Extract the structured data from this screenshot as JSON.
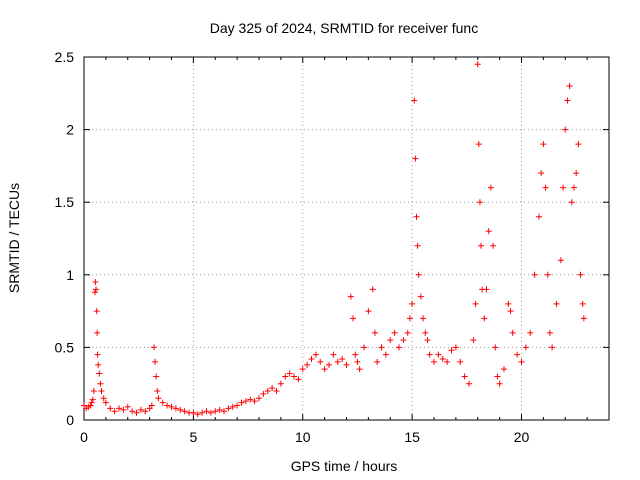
{
  "chart_data": {
    "type": "scatter",
    "title": "Day 325 of 2024, SRMTID for receiver func",
    "xlabel": "GPS time / hours",
    "ylabel": "SRMTID / TECUs",
    "xlim": [
      0,
      24
    ],
    "ylim": [
      0,
      2.5
    ],
    "x_ticks": [
      0,
      5,
      10,
      15,
      20
    ],
    "x_tick_labels": [
      "0",
      "5",
      "10",
      "15",
      "20"
    ],
    "y_ticks": [
      0,
      0.5,
      1,
      1.5,
      2,
      2.5
    ],
    "y_tick_labels": [
      "0",
      "0.5",
      "1",
      "1.5",
      "2",
      "2.5"
    ],
    "grid": true,
    "marker": "+",
    "color": "#ff0000",
    "series": [
      {
        "name": "SRMTID",
        "points": [
          [
            0.0,
            0.1
          ],
          [
            0.1,
            0.08
          ],
          [
            0.2,
            0.09
          ],
          [
            0.3,
            0.1
          ],
          [
            0.35,
            0.12
          ],
          [
            0.4,
            0.14
          ],
          [
            0.45,
            0.2
          ],
          [
            0.5,
            0.88
          ],
          [
            0.52,
            0.95
          ],
          [
            0.55,
            0.9
          ],
          [
            0.58,
            0.75
          ],
          [
            0.6,
            0.6
          ],
          [
            0.62,
            0.45
          ],
          [
            0.65,
            0.38
          ],
          [
            0.7,
            0.32
          ],
          [
            0.75,
            0.25
          ],
          [
            0.8,
            0.2
          ],
          [
            0.9,
            0.15
          ],
          [
            1.0,
            0.12
          ],
          [
            1.2,
            0.08
          ],
          [
            1.4,
            0.06
          ],
          [
            1.6,
            0.08
          ],
          [
            1.8,
            0.07
          ],
          [
            2.0,
            0.09
          ],
          [
            2.2,
            0.06
          ],
          [
            2.4,
            0.05
          ],
          [
            2.6,
            0.07
          ],
          [
            2.8,
            0.06
          ],
          [
            3.0,
            0.08
          ],
          [
            3.1,
            0.1
          ],
          [
            3.2,
            0.5
          ],
          [
            3.25,
            0.4
          ],
          [
            3.3,
            0.3
          ],
          [
            3.35,
            0.2
          ],
          [
            3.4,
            0.15
          ],
          [
            3.6,
            0.12
          ],
          [
            3.8,
            0.1
          ],
          [
            4.0,
            0.09
          ],
          [
            4.2,
            0.08
          ],
          [
            4.4,
            0.07
          ],
          [
            4.6,
            0.06
          ],
          [
            4.8,
            0.05
          ],
          [
            5.0,
            0.05
          ],
          [
            5.2,
            0.04
          ],
          [
            5.4,
            0.05
          ],
          [
            5.6,
            0.06
          ],
          [
            5.8,
            0.05
          ],
          [
            6.0,
            0.06
          ],
          [
            6.2,
            0.07
          ],
          [
            6.4,
            0.06
          ],
          [
            6.6,
            0.08
          ],
          [
            6.8,
            0.09
          ],
          [
            7.0,
            0.1
          ],
          [
            7.2,
            0.12
          ],
          [
            7.4,
            0.13
          ],
          [
            7.6,
            0.14
          ],
          [
            7.8,
            0.13
          ],
          [
            8.0,
            0.15
          ],
          [
            8.2,
            0.18
          ],
          [
            8.4,
            0.2
          ],
          [
            8.6,
            0.22
          ],
          [
            8.8,
            0.2
          ],
          [
            9.0,
            0.25
          ],
          [
            9.2,
            0.3
          ],
          [
            9.4,
            0.32
          ],
          [
            9.6,
            0.3
          ],
          [
            9.8,
            0.28
          ],
          [
            10.0,
            0.35
          ],
          [
            10.2,
            0.38
          ],
          [
            10.4,
            0.42
          ],
          [
            10.6,
            0.45
          ],
          [
            10.8,
            0.4
          ],
          [
            11.0,
            0.35
          ],
          [
            11.2,
            0.38
          ],
          [
            11.4,
            0.45
          ],
          [
            11.6,
            0.4
          ],
          [
            11.8,
            0.42
          ],
          [
            12.0,
            0.38
          ],
          [
            12.2,
            0.85
          ],
          [
            12.3,
            0.7
          ],
          [
            12.4,
            0.45
          ],
          [
            12.5,
            0.4
          ],
          [
            12.6,
            0.35
          ],
          [
            12.8,
            0.5
          ],
          [
            13.0,
            0.75
          ],
          [
            13.2,
            0.9
          ],
          [
            13.3,
            0.6
          ],
          [
            13.4,
            0.4
          ],
          [
            13.6,
            0.5
          ],
          [
            13.8,
            0.45
          ],
          [
            14.0,
            0.55
          ],
          [
            14.2,
            0.6
          ],
          [
            14.4,
            0.5
          ],
          [
            14.6,
            0.55
          ],
          [
            14.8,
            0.6
          ],
          [
            14.9,
            0.7
          ],
          [
            15.0,
            0.8
          ],
          [
            15.1,
            2.2
          ],
          [
            15.15,
            1.8
          ],
          [
            15.2,
            1.4
          ],
          [
            15.25,
            1.2
          ],
          [
            15.3,
            1.0
          ],
          [
            15.4,
            0.85
          ],
          [
            15.5,
            0.7
          ],
          [
            15.6,
            0.6
          ],
          [
            15.7,
            0.55
          ],
          [
            15.8,
            0.45
          ],
          [
            16.0,
            0.4
          ],
          [
            16.2,
            0.45
          ],
          [
            16.4,
            0.42
          ],
          [
            16.6,
            0.4
          ],
          [
            16.8,
            0.48
          ],
          [
            17.0,
            0.5
          ],
          [
            17.2,
            0.4
          ],
          [
            17.4,
            0.3
          ],
          [
            17.6,
            0.25
          ],
          [
            17.8,
            0.55
          ],
          [
            17.9,
            0.8
          ],
          [
            18.0,
            2.45
          ],
          [
            18.05,
            1.9
          ],
          [
            18.1,
            1.5
          ],
          [
            18.15,
            1.2
          ],
          [
            18.2,
            0.9
          ],
          [
            18.3,
            0.7
          ],
          [
            18.4,
            0.9
          ],
          [
            18.5,
            1.3
          ],
          [
            18.6,
            1.6
          ],
          [
            18.7,
            1.2
          ],
          [
            18.8,
            0.5
          ],
          [
            18.9,
            0.3
          ],
          [
            19.0,
            0.25
          ],
          [
            19.2,
            0.35
          ],
          [
            19.4,
            0.8
          ],
          [
            19.5,
            0.75
          ],
          [
            19.6,
            0.6
          ],
          [
            19.8,
            0.45
          ],
          [
            20.0,
            0.4
          ],
          [
            20.2,
            0.5
          ],
          [
            20.4,
            0.6
          ],
          [
            20.6,
            1.0
          ],
          [
            20.8,
            1.4
          ],
          [
            20.9,
            1.7
          ],
          [
            21.0,
            1.9
          ],
          [
            21.1,
            1.6
          ],
          [
            21.2,
            1.0
          ],
          [
            21.3,
            0.6
          ],
          [
            21.4,
            0.5
          ],
          [
            21.6,
            0.8
          ],
          [
            21.8,
            1.1
          ],
          [
            21.9,
            1.6
          ],
          [
            22.0,
            2.0
          ],
          [
            22.1,
            2.2
          ],
          [
            22.2,
            2.3
          ],
          [
            22.3,
            1.5
          ],
          [
            22.4,
            1.6
          ],
          [
            22.5,
            1.7
          ],
          [
            22.6,
            1.9
          ],
          [
            22.7,
            1.0
          ],
          [
            22.8,
            0.8
          ],
          [
            22.85,
            0.7
          ]
        ]
      }
    ]
  }
}
